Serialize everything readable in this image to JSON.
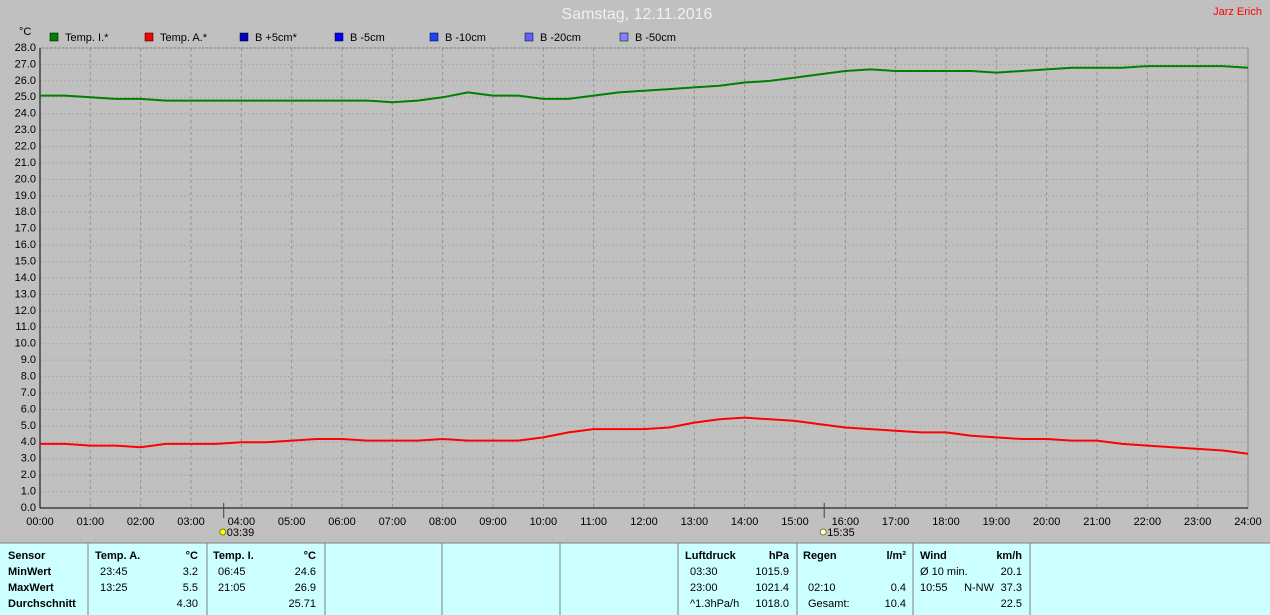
{
  "chart_data": {
    "type": "line",
    "title": "Samstag, 12.11.2016",
    "author": "Jarz Erich",
    "y_unit": "°C",
    "x": [
      0,
      0.5,
      1,
      1.5,
      2,
      2.5,
      3,
      3.5,
      4,
      4.5,
      5,
      5.5,
      6,
      6.5,
      7,
      7.5,
      8,
      8.5,
      9,
      9.5,
      10,
      10.5,
      11,
      11.5,
      12,
      12.5,
      13,
      13.5,
      14,
      14.5,
      15,
      15.5,
      16,
      16.5,
      17,
      17.5,
      18,
      18.5,
      19,
      19.5,
      20,
      20.5,
      21,
      21.5,
      22,
      22.5,
      23,
      23.5,
      24
    ],
    "series": [
      {
        "name": "Temp. I.*",
        "color": "#008000",
        "values": [
          25.1,
          25.1,
          25.0,
          24.9,
          24.9,
          24.8,
          24.8,
          24.8,
          24.8,
          24.8,
          24.8,
          24.8,
          24.8,
          24.8,
          24.7,
          24.8,
          25.0,
          25.3,
          25.1,
          25.1,
          24.9,
          24.9,
          25.1,
          25.3,
          25.4,
          25.5,
          25.6,
          25.7,
          25.9,
          26.0,
          26.2,
          26.4,
          26.6,
          26.7,
          26.6,
          26.6,
          26.6,
          26.6,
          26.5,
          26.6,
          26.7,
          26.8,
          26.8,
          26.8,
          26.9,
          26.9,
          26.9,
          26.9,
          26.8
        ]
      },
      {
        "name": "Temp. A.*",
        "color": "#ff0000",
        "values": [
          3.9,
          3.9,
          3.8,
          3.8,
          3.7,
          3.9,
          3.9,
          3.9,
          4.0,
          4.0,
          4.1,
          4.2,
          4.2,
          4.1,
          4.1,
          4.1,
          4.2,
          4.1,
          4.1,
          4.1,
          4.3,
          4.6,
          4.8,
          4.8,
          4.8,
          4.9,
          5.2,
          5.4,
          5.5,
          5.4,
          5.3,
          5.1,
          4.9,
          4.8,
          4.7,
          4.6,
          4.6,
          4.4,
          4.3,
          4.2,
          4.2,
          4.1,
          4.1,
          3.9,
          3.8,
          3.7,
          3.6,
          3.5,
          3.3
        ]
      }
    ],
    "legend_only": [
      {
        "name": "B +5cm*",
        "color": "#0000c0"
      },
      {
        "name": "B -5cm",
        "color": "#0000ff"
      },
      {
        "name": "B -10cm",
        "color": "#2040ff"
      },
      {
        "name": "B -20cm",
        "color": "#6060ff"
      },
      {
        "name": "B -50cm",
        "color": "#8080ff"
      }
    ],
    "xlim": [
      0,
      24
    ],
    "xticks": [
      {
        "value": 0,
        "label": "00:00"
      },
      {
        "value": 1,
        "label": "01:00"
      },
      {
        "value": 2,
        "label": "02:00"
      },
      {
        "value": 3,
        "label": "03:00"
      },
      {
        "value": 4,
        "label": "04:00"
      },
      {
        "value": 5,
        "label": "05:00"
      },
      {
        "value": 6,
        "label": "06:00"
      },
      {
        "value": 7,
        "label": "07:00"
      },
      {
        "value": 8,
        "label": "08:00"
      },
      {
        "value": 9,
        "label": "09:00"
      },
      {
        "value": 10,
        "label": "10:00"
      },
      {
        "value": 11,
        "label": "11:00"
      },
      {
        "value": 12,
        "label": "12:00"
      },
      {
        "value": 13,
        "label": "13:00"
      },
      {
        "value": 14,
        "label": "14:00"
      },
      {
        "value": 15,
        "label": "15:00"
      },
      {
        "value": 16,
        "label": "16:00"
      },
      {
        "value": 17,
        "label": "17:00"
      },
      {
        "value": 18,
        "label": "18:00"
      },
      {
        "value": 19,
        "label": "19:00"
      },
      {
        "value": 20,
        "label": "20:00"
      },
      {
        "value": 21,
        "label": "21:00"
      },
      {
        "value": 22,
        "label": "22:00"
      },
      {
        "value": 23,
        "label": "23:00"
      },
      {
        "value": 24,
        "label": "24:00"
      }
    ],
    "ylim": [
      0,
      28
    ],
    "yticks": [
      {
        "value": 0,
        "label": "0.0"
      },
      {
        "value": 1,
        "label": "1.0"
      },
      {
        "value": 2,
        "label": "2.0"
      },
      {
        "value": 3,
        "label": "3.0"
      },
      {
        "value": 4,
        "label": "4.0"
      },
      {
        "value": 5,
        "label": "5.0"
      },
      {
        "value": 6,
        "label": "6.0"
      },
      {
        "value": 7,
        "label": "7.0"
      },
      {
        "value": 8,
        "label": "8.0"
      },
      {
        "value": 9,
        "label": "9.0"
      },
      {
        "value": 10,
        "label": "10.0"
      },
      {
        "value": 11,
        "label": "11.0"
      },
      {
        "value": 12,
        "label": "12.0"
      },
      {
        "value": 13,
        "label": "13.0"
      },
      {
        "value": 14,
        "label": "14.0"
      },
      {
        "value": 15,
        "label": "15.0"
      },
      {
        "value": 16,
        "label": "16.0"
      },
      {
        "value": 17,
        "label": "17.0"
      },
      {
        "value": 18,
        "label": "18.0"
      },
      {
        "value": 19,
        "label": "19.0"
      },
      {
        "value": 20,
        "label": "20.0"
      },
      {
        "value": 21,
        "label": "21.0"
      },
      {
        "value": 22,
        "label": "22.0"
      },
      {
        "value": 23,
        "label": "23.0"
      },
      {
        "value": 24,
        "label": "24.0"
      },
      {
        "value": 25,
        "label": "25.0"
      },
      {
        "value": 26,
        "label": "26.0"
      },
      {
        "value": 27,
        "label": "27.0"
      },
      {
        "value": 28,
        "label": "28.0"
      }
    ],
    "annotations": [
      {
        "x": 3.65,
        "label": "03:39"
      },
      {
        "x": 15.58,
        "label": "15:35"
      }
    ],
    "grid": true
  },
  "table": {
    "sensor": {
      "title": "Sensor",
      "rows": [
        "MinWert",
        "MaxWert",
        "Durchschnitt"
      ]
    },
    "blocks": [
      {
        "title": "Temp. A.",
        "unit": "°C",
        "rows": [
          {
            "left": "23:45",
            "right": "3.2"
          },
          {
            "left": "13:25",
            "right": "5.5"
          },
          {
            "right": "4.30"
          }
        ]
      },
      {
        "title": "Temp. I.",
        "unit": "°C",
        "rows": [
          {
            "left": "06:45",
            "right": "24.6"
          },
          {
            "left": "21:05",
            "right": "26.9"
          },
          {
            "right": "25.71"
          }
        ]
      },
      {
        "title": "Luftdruck",
        "unit": "hPa",
        "rows": [
          {
            "left": "03:30",
            "right": "1015.9"
          },
          {
            "left": "23:00",
            "right": "1021.4"
          },
          {
            "left": "^1.3hPa/h",
            "right": "1018.0"
          }
        ]
      },
      {
        "title": "Regen",
        "unit": "l/m²",
        "rows": [
          {},
          {
            "left": "02:10",
            "right": "0.4"
          },
          {
            "left": "Gesamt:",
            "right": "10.4"
          }
        ]
      },
      {
        "title": "Wind",
        "unit": "km/h",
        "rows": [
          {
            "left": "Ø 10 min.",
            "right": "20.1"
          },
          {
            "left": "10:55",
            "mid": "N-NW",
            "right": "37.3"
          },
          {
            "right": "22.5"
          }
        ]
      }
    ]
  }
}
